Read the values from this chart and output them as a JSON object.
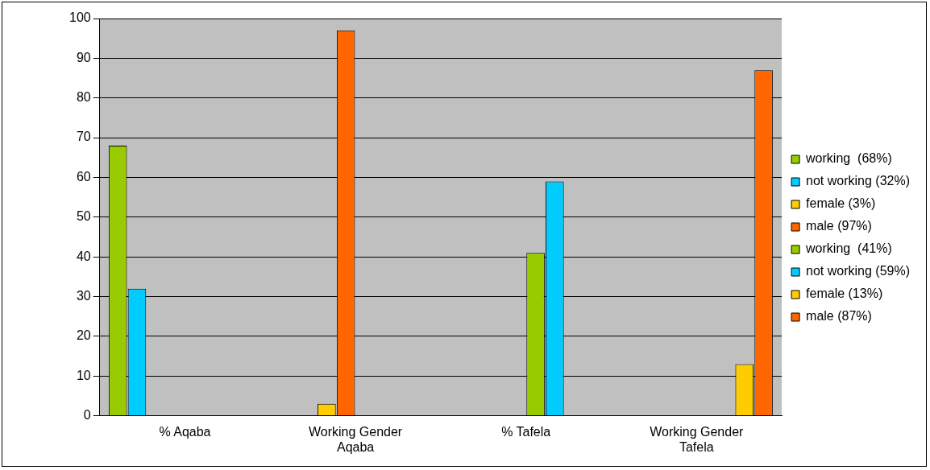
{
  "chart_data": {
    "type": "bar",
    "categories": [
      "% Aqaba",
      "Working Gender Aqaba",
      "% Tafela",
      "Working Gender Tafela"
    ],
    "series": [
      {
        "name": "working  (68%)",
        "color": "#99cc00",
        "values": [
          68,
          null,
          null,
          null
        ]
      },
      {
        "name": "not working (32%)",
        "color": "#00ccff",
        "values": [
          32,
          null,
          null,
          null
        ]
      },
      {
        "name": "female (3%)",
        "color": "#ffcc00",
        "values": [
          null,
          3,
          null,
          null
        ]
      },
      {
        "name": "male (97%)",
        "color": "#ff6600",
        "values": [
          null,
          97,
          null,
          null
        ]
      },
      {
        "name": "working  (41%)",
        "color": "#99cc00",
        "values": [
          null,
          null,
          41,
          null
        ]
      },
      {
        "name": "not working (59%)",
        "color": "#00ccff",
        "values": [
          null,
          null,
          59,
          null
        ]
      },
      {
        "name": "female (13%)",
        "color": "#ffcc00",
        "values": [
          null,
          null,
          null,
          13
        ]
      },
      {
        "name": "male (87%)",
        "color": "#ff6600",
        "values": [
          null,
          null,
          null,
          87
        ]
      }
    ],
    "ylim": [
      0,
      100
    ],
    "yticks": [
      0,
      10,
      20,
      30,
      40,
      50,
      60,
      70,
      80,
      90,
      100
    ],
    "grid": "y",
    "legend": "right"
  }
}
